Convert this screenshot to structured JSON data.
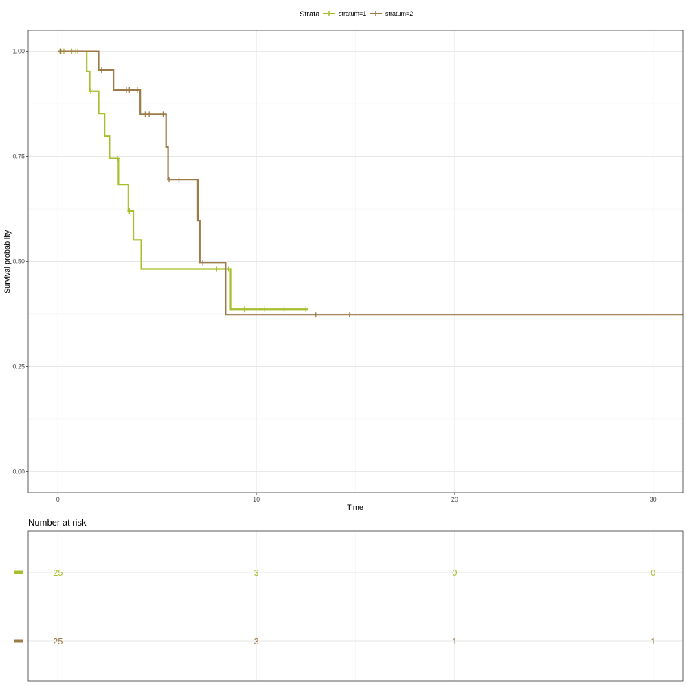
{
  "chart_data": [
    {
      "type": "line",
      "subtype": "kaplan-meier-step",
      "title": "",
      "xlabel": "Time",
      "ylabel": "Survival probability",
      "xlim": [
        -1.5,
        31.5
      ],
      "ylim": [
        -0.05,
        1.05
      ],
      "x_ticks": [
        0,
        10,
        20,
        30
      ],
      "x_tick_labels": [
        "0",
        "10",
        "20",
        "30"
      ],
      "y_ticks": [
        0,
        0.25,
        0.5,
        0.75,
        1
      ],
      "y_tick_labels": [
        "0.00",
        "0.25",
        "0.50",
        "0.75",
        "1.00"
      ],
      "grid": true,
      "legend": {
        "title": "Strata",
        "placement": "top",
        "entries": [
          "stratum=1",
          "stratum=2"
        ]
      },
      "series": [
        {
          "name": "stratum=1",
          "color": "#a8be2b",
          "steps": [
            [
              0,
              1.0
            ],
            [
              1.45,
              0.952
            ],
            [
              1.6,
              0.905
            ],
            [
              2.05,
              0.852
            ],
            [
              2.35,
              0.798
            ],
            [
              2.6,
              0.745
            ],
            [
              3.05,
              0.682
            ],
            [
              3.55,
              0.62
            ],
            [
              3.8,
              0.551
            ],
            [
              4.2,
              0.482
            ],
            [
              8.7,
              0.386
            ],
            [
              12.6,
              0.386
            ]
          ],
          "censor_x": [
            0.1,
            0.3,
            0.7,
            0.9,
            1.0,
            1.65,
            3.0,
            3.6,
            8.0,
            8.6,
            9.4,
            10.4,
            11.4,
            12.5
          ]
        },
        {
          "name": "stratum=2",
          "color": "#9c7b48",
          "steps": [
            [
              0,
              1.0
            ],
            [
              2.05,
              0.955
            ],
            [
              2.8,
              0.908
            ],
            [
              4.15,
              0.85
            ],
            [
              5.45,
              0.772
            ],
            [
              5.55,
              0.695
            ],
            [
              7.05,
              0.597
            ],
            [
              7.15,
              0.497
            ],
            [
              8.45,
              0.373
            ],
            [
              31.5,
              0.373
            ]
          ],
          "censor_x": [
            0.15,
            2.2,
            3.45,
            3.6,
            4.0,
            4.4,
            4.6,
            5.3,
            5.6,
            6.1,
            7.3,
            13.0,
            14.7
          ]
        }
      ]
    },
    {
      "type": "table",
      "title": "Number at risk",
      "x_ticks": [
        0,
        10,
        20,
        30
      ],
      "rows": [
        {
          "stratum": "stratum=1",
          "color": "#a8be2b",
          "values": [
            25,
            3,
            0,
            0
          ]
        },
        {
          "stratum": "stratum=2",
          "color": "#9c7b48",
          "values": [
            25,
            3,
            1,
            1
          ]
        }
      ]
    }
  ]
}
